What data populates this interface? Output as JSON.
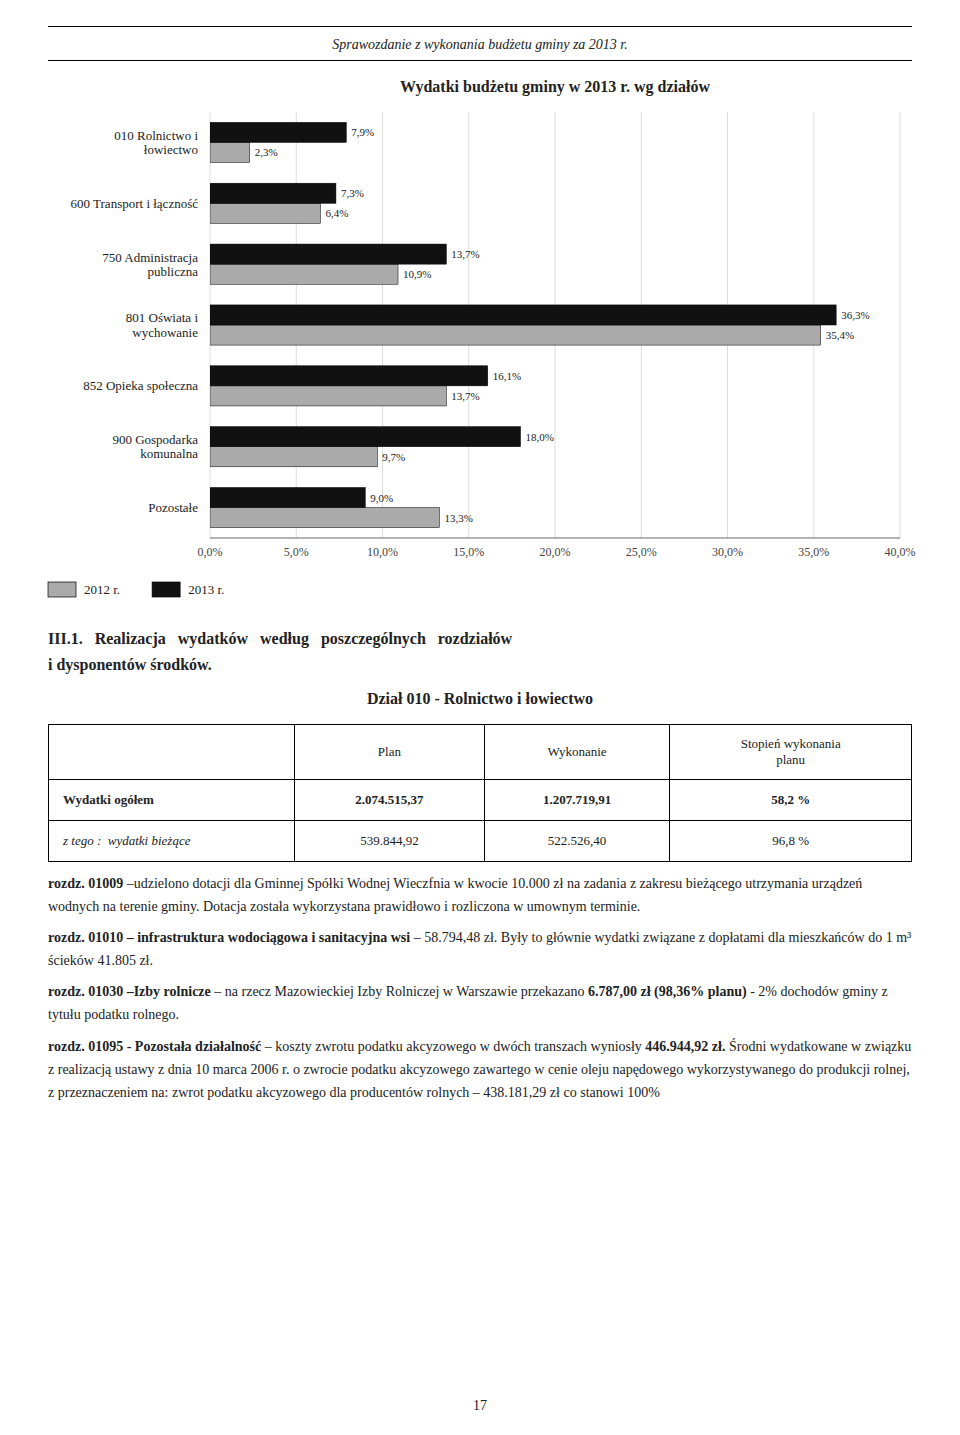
{
  "page_title": "Sprawozdanie z wykonania budżetu gminy za 2013 r.",
  "chart_data": {
    "type": "bar",
    "orientation": "horizontal",
    "title": "Wydatki budżetu gminy w 2013 r. wg działów",
    "categories": [
      "010 Rolnictwo i\nłowiectwo",
      "600 Transport i łączność",
      "750 Administracja\npubliczna",
      "801 Oświata i\nwychowanie",
      "852 Opieka społeczna",
      "900 Gospodarka\nkomunalna",
      "Pozostałe"
    ],
    "series": [
      {
        "name": "2012 r.",
        "color": "#aaaaaa",
        "values": [
          2.3,
          6.4,
          10.9,
          35.4,
          13.7,
          9.7,
          13.3
        ],
        "value_labels": [
          "2,3%",
          "6,4%",
          "10,9%",
          "35,4%",
          "13,7%",
          "9,7%",
          "13,3%"
        ]
      },
      {
        "name": "2013 r.",
        "color": "#111111",
        "values": [
          7.9,
          7.3,
          13.7,
          36.3,
          16.1,
          18.0,
          9.0
        ],
        "value_labels": [
          "7,9%",
          "7,3%",
          "13,7%",
          "36,3%",
          "16,1%",
          "18,0%",
          "9,0%"
        ]
      }
    ],
    "xlim": [
      0,
      40
    ],
    "xticks": [
      {
        "value": 0,
        "label": "0,0%"
      },
      {
        "value": 5,
        "label": "5,0%"
      },
      {
        "value": 10,
        "label": "10,0%"
      },
      {
        "value": 15,
        "label": "15,0%"
      },
      {
        "value": 20,
        "label": "20,0%"
      },
      {
        "value": 25,
        "label": "25,0%"
      },
      {
        "value": 30,
        "label": "30,0%"
      },
      {
        "value": 35,
        "label": "35,0%"
      },
      {
        "value": 40,
        "label": "40,0%"
      }
    ],
    "grid": true,
    "legend": "bottom",
    "data_labels": true
  },
  "section_title": "III.1.",
  "section_title_spaced": "Realizacja   wydatków   według   poszczególnych   rozdziałów",
  "section_title2": "i dysponentów środków.",
  "table": {
    "title": "Dział 010 - Rolnictwo i łowiectwo",
    "headers": [
      "Plan",
      "Wykonanie",
      "Stopień wykonania\nplanu"
    ],
    "rows": [
      [
        "Wydatki ogółem",
        "2.074.515,37",
        "1.207.719,91",
        "58,2 %"
      ],
      [
        "z tego :  wydatki bieżące",
        "539.844,92",
        "522.526,40",
        "96,8 %"
      ]
    ]
  },
  "paragraphs": [
    [
      {
        "text": "rozdz. 01009",
        "bold": true
      },
      {
        "text": "–udzielono dotacji dla Gminnej Spółki Wodnej Wieczfnia w kwocie 10.000 zł na zadania z zakresu bieżącego utrzymania urządzeń wodnych na terenie gminy. Dotacja została wykorzystana prawidłowo i rozliczona w umownym terminie.",
        "bold": false
      }
    ],
    [
      {
        "text": "rozdz. 01010 – infrastruktura wodociągowa i sanitacyjna wsi",
        "bold": true
      },
      {
        "text": "– 58.794,48 zł. Były to głównie wydatki związane z dopłatami dla mieszkańców do 1 m³ ścieków 41.805 zł.",
        "bold": false
      }
    ],
    [
      {
        "text": "rozdz. 01030 –Izby rolnicze",
        "bold": true
      },
      {
        "text": "– na rzecz Mazowieckiej Izby Rolniczej w Warszawie przekazano",
        "bold": false
      },
      {
        "text": "6.787,00 zł (98,36% planu)",
        "bold": true
      },
      {
        "text": "- 2% dochodów gminy z tytułu podatku rolnego.",
        "bold": false
      }
    ],
    [
      {
        "text": "rozdz. 01095 - Pozostała działalność",
        "bold": true
      },
      {
        "text": "– koszty zwrotu podatku akcyzowego w dwóch transzach wyniosły",
        "bold": false
      },
      {
        "text": "446.944,92 zł.",
        "bold": true
      },
      {
        "text": "Środni wydatkowane w związku z realizacją ustawy z dnia 10 marca 2006 r. o zwrocie podatku akcyzowego zawartego w cenie oleju napędowego wykorzystywanego do produkcji rolnej, z przeznaczeniem na: zwrot podatku akcyzowego dla producentów rolnych – 438.181,29 zł co stanowi 100%",
        "bold": false
      }
    ]
  ],
  "page_number": "17"
}
